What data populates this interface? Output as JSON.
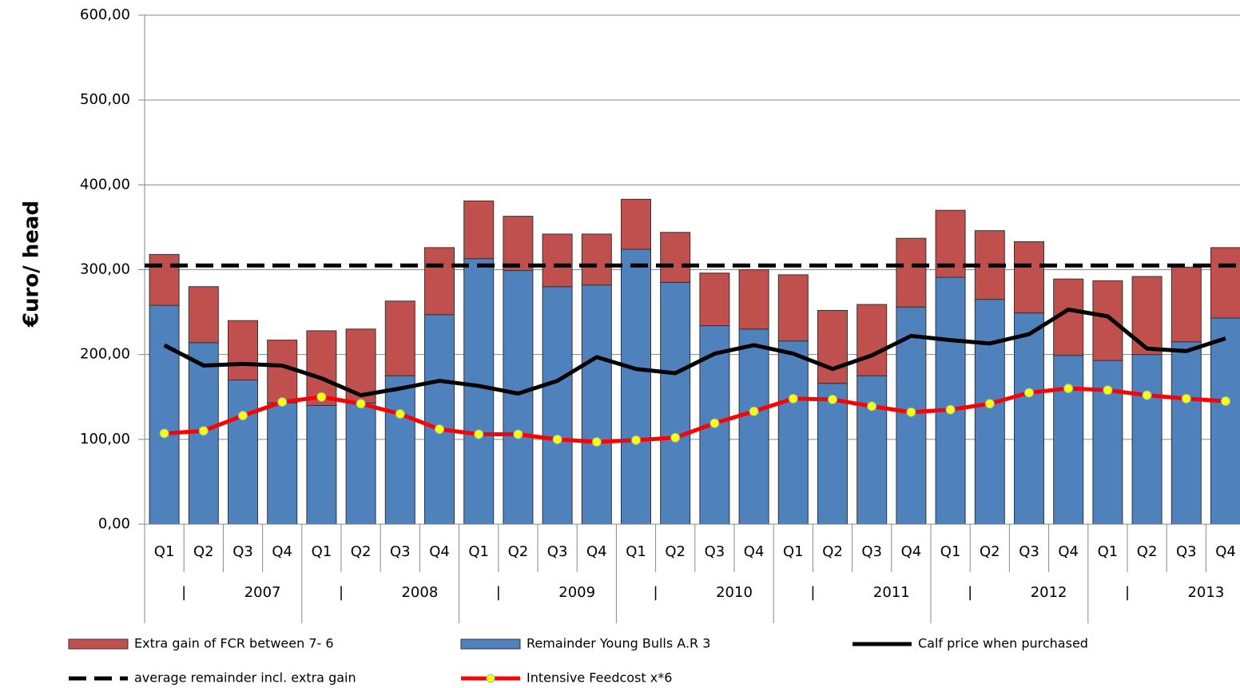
{
  "chart_data": {
    "type": "bar",
    "y_label": "€uro/ head",
    "categories": [
      "Q1",
      "Q2",
      "Q3",
      "Q4",
      "Q1",
      "Q2",
      "Q3",
      "Q4",
      "Q1",
      "Q2",
      "Q3",
      "Q4",
      "Q1",
      "Q2",
      "Q3",
      "Q4",
      "Q1",
      "Q2",
      "Q3",
      "Q4",
      "Q1",
      "Q2",
      "Q3",
      "Q4",
      "Q1",
      "Q2",
      "Q3",
      "Q4"
    ],
    "group_labels": [
      "|",
      "2007",
      "|",
      "2008",
      "|",
      "2009",
      "|",
      "2010",
      "|",
      "2011",
      "|",
      "2012",
      "|",
      "2013"
    ],
    "ylim": [
      0,
      600
    ],
    "yticks": [
      {
        "value": 0,
        "label": "0,00"
      },
      {
        "value": 100,
        "label": "100,00"
      },
      {
        "value": 200,
        "label": "200,00"
      },
      {
        "value": 300,
        "label": "300,00"
      },
      {
        "value": 400,
        "label": "400,00"
      },
      {
        "value": 500,
        "label": "500,00"
      },
      {
        "value": 600,
        "label": "600,00"
      }
    ],
    "grid": true,
    "stacked": true,
    "series": [
      {
        "name": "Extra gain of FCR between 7- 6",
        "kind": "bar",
        "color": "#c0504d",
        "values": [
          60,
          66,
          70,
          74,
          88,
          87,
          88,
          79,
          68,
          64,
          62,
          60,
          59,
          59,
          62,
          70,
          78,
          86,
          84,
          81,
          79,
          81,
          84,
          90,
          94,
          92,
          88,
          83
        ]
      },
      {
        "name": "Remainder Young Bulls A.R 3",
        "kind": "bar",
        "color": "#4f81bd",
        "values": [
          258,
          214,
          170,
          143,
          140,
          143,
          175,
          247,
          313,
          299,
          280,
          282,
          324,
          285,
          234,
          230,
          216,
          166,
          175,
          256,
          291,
          265,
          249,
          199,
          193,
          200,
          215,
          243
        ]
      },
      {
        "name": "Calf price when purchased",
        "kind": "line",
        "color": "#000000",
        "values": [
          211,
          187,
          189,
          187,
          172,
          152,
          160,
          169,
          163,
          154,
          169,
          197,
          183,
          178,
          201,
          211,
          201,
          183,
          199,
          222,
          217,
          213,
          224,
          253,
          245,
          207,
          204,
          219
        ]
      },
      {
        "name": "average remainder incl. extra gain",
        "kind": "hline",
        "color": "#000000",
        "dashed": true,
        "value": 305
      },
      {
        "name": "Intensive Feedcost x*6",
        "kind": "line",
        "color": "#ff0000",
        "marker_color": "#ffff00",
        "values": [
          107,
          110,
          128,
          144,
          150,
          142,
          130,
          112,
          106,
          106,
          100,
          97,
          99,
          102,
          119,
          133,
          148,
          147,
          139,
          132,
          135,
          142,
          155,
          160,
          158,
          152,
          148,
          145
        ]
      }
    ]
  }
}
